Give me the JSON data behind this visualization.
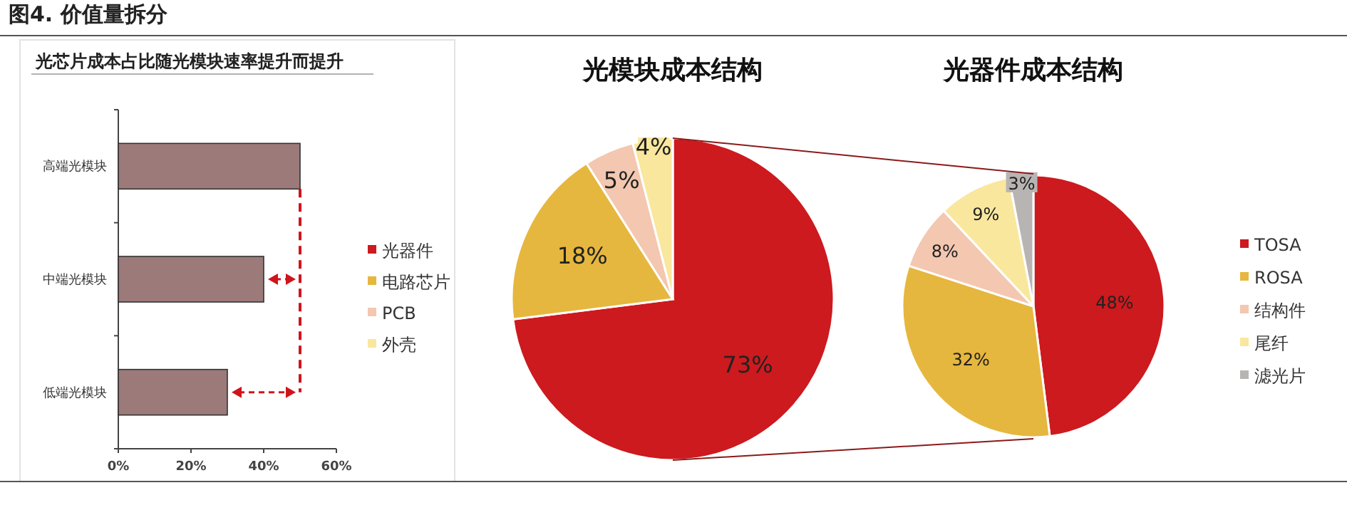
{
  "chart_data": [
    {
      "type": "bar",
      "title": "图4. 价值量拆分",
      "subtitle": "光芯片成本占比随光模块速率提升而提升",
      "orientation": "horizontal",
      "categories": [
        "高端光模块",
        "中端光模块",
        "低端光模块"
      ],
      "values": [
        50,
        40,
        30
      ],
      "color": "#9c7a7a",
      "xlim": [
        0,
        60
      ],
      "xticks": [
        {
          "value": 0,
          "label": "0%"
        },
        {
          "value": 20,
          "label": "20%"
        },
        {
          "value": 40,
          "label": "40%"
        },
        {
          "value": 60,
          "label": "60%"
        }
      ]
    },
    {
      "type": "pie",
      "title": "光模块成本结构",
      "categories": [
        "光器件",
        "电路芯片",
        "PCB",
        "外壳"
      ],
      "values": [
        73,
        18,
        5,
        4
      ],
      "colors": [
        "#cc1a1e",
        "#e6b73e",
        "#f3c7b0",
        "#fae79e"
      ],
      "value_labels": [
        "73%",
        "18%",
        "5%",
        "4%"
      ],
      "legend": "left"
    },
    {
      "type": "pie",
      "title": "光器件成本结构",
      "categories": [
        "TOSA",
        "ROSA",
        "结构件",
        "尾纤",
        "滤光片"
      ],
      "values": [
        48,
        32,
        8,
        9,
        3
      ],
      "colors": [
        "#cc1a1e",
        "#e6b73e",
        "#f3c7b0",
        "#fae79e",
        "#b9b4b4"
      ],
      "value_labels": [
        "48%",
        "32%",
        "8%",
        "9%",
        "3%"
      ],
      "legend": "right"
    }
  ]
}
